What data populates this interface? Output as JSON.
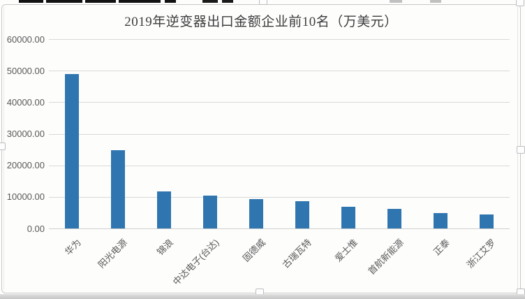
{
  "chart_data": {
    "type": "bar",
    "title": "2019年逆变器出口金额企业前10名（万美元）",
    "categories": [
      "华为",
      "阳光电源",
      "锦浪",
      "中达电子(台达)",
      "固德威",
      "古瑞瓦特",
      "爱士惟",
      "首航新能源",
      "正泰",
      "浙江艾罗"
    ],
    "values": [
      49000,
      24900,
      11900,
      10600,
      9300,
      8700,
      6900,
      6400,
      4900,
      4600
    ],
    "xlabel": "",
    "ylabel": "",
    "ylim": [
      0,
      60000
    ],
    "ytick_interval": 10000,
    "ytick_labels": [
      "0.00",
      "10000.00",
      "20000.00",
      "30000.00",
      "40000.00",
      "50000.00",
      "60000.00"
    ],
    "grid": true,
    "legend": false
  },
  "colors": {
    "bar": "#2f76b0",
    "gridline": "#d9d9d9",
    "baseline": "#cfcfcf",
    "axis_text": "#595959",
    "title_text": "#3c3c3c",
    "frame_border": "#c8c8c8"
  }
}
